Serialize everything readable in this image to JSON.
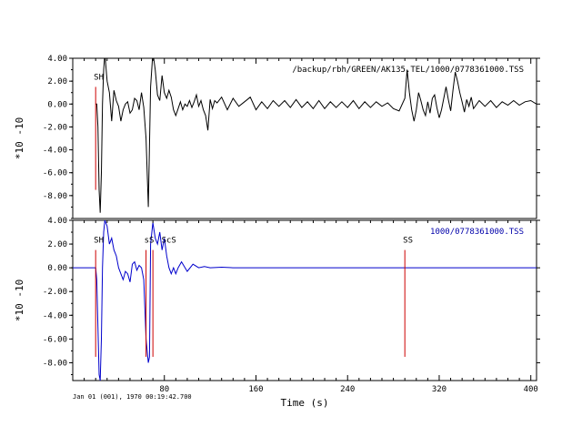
{
  "chart_data": [
    {
      "type": "line",
      "panel": "top",
      "file_label": "/backup/rbh/GREEN/AK135.TEL/1000/0778361000.TSS",
      "file_label_color": "#000000",
      "ylabel": "*10 -10",
      "ylim": [
        -10,
        4
      ],
      "yticks": [
        4,
        2,
        0,
        -2,
        -4,
        -6,
        -8
      ],
      "ytick_labels": [
        "4.00",
        "2.00",
        "0.00",
        "-2.00",
        "-4.00",
        "-6.00",
        "-8.00"
      ],
      "xlim": [
        0,
        405
      ],
      "series_color": "#000000",
      "x": [
        20,
        21,
        22,
        23,
        24,
        25,
        26,
        27,
        28,
        30,
        32,
        34,
        36,
        38,
        40,
        42,
        44,
        46,
        48,
        50,
        52,
        54,
        56,
        58,
        60,
        62,
        64,
        66,
        68,
        70,
        72,
        74,
        76,
        78,
        80,
        82,
        84,
        86,
        88,
        90,
        92,
        94,
        96,
        98,
        100,
        102,
        104,
        106,
        108,
        110,
        112,
        114,
        116,
        118,
        120,
        122,
        124,
        126,
        130,
        135,
        140,
        145,
        150,
        155,
        160,
        165,
        170,
        175,
        180,
        185,
        190,
        195,
        200,
        205,
        210,
        215,
        220,
        225,
        230,
        235,
        240,
        245,
        250,
        255,
        260,
        265,
        270,
        275,
        280,
        285,
        290,
        292,
        294,
        296,
        298,
        300,
        302,
        304,
        306,
        308,
        310,
        312,
        314,
        316,
        318,
        320,
        322,
        324,
        326,
        328,
        330,
        332,
        334,
        336,
        338,
        340,
        342,
        344,
        346,
        348,
        350,
        355,
        360,
        365,
        370,
        375,
        380,
        385,
        390,
        395,
        400,
        405
      ],
      "y": [
        0,
        0,
        -2,
        -7.5,
        -9.5,
        -6,
        0,
        3,
        4.4,
        2,
        1,
        -1.5,
        1.2,
        0.3,
        -0.2,
        -1.5,
        -0.5,
        0,
        0.2,
        -0.8,
        -0.5,
        0.5,
        0.3,
        -0.5,
        1,
        -0.3,
        -3,
        -9,
        1.5,
        4.5,
        3,
        0.8,
        0.3,
        2.5,
        1,
        0.5,
        1.2,
        0.6,
        -0.5,
        -1,
        -0.4,
        0.2,
        -0.5,
        0,
        -0.2,
        0.3,
        -0.3,
        0.2,
        0.8,
        -0.2,
        0.3,
        -0.5,
        -1,
        -2.3,
        0.4,
        -0.4,
        0.3,
        0.1,
        0.6,
        -0.5,
        0.5,
        -0.2,
        0.2,
        0.6,
        -0.5,
        0.2,
        -0.4,
        0.3,
        -0.2,
        0.3,
        -0.3,
        0.4,
        -0.3,
        0.2,
        -0.4,
        0.3,
        -0.4,
        0.2,
        -0.3,
        0.2,
        -0.3,
        0.3,
        -0.4,
        0.2,
        -0.3,
        0.2,
        -0.2,
        0.1,
        -0.4,
        -0.6,
        0.5,
        3,
        1,
        -0.5,
        -1.5,
        -0.5,
        1,
        0.3,
        -0.5,
        -1,
        0.2,
        -0.8,
        0.5,
        0.8,
        -0.3,
        -1.2,
        -0.5,
        0.5,
        1.5,
        0.4,
        -0.6,
        1.2,
        2.8,
        2,
        1,
        0.2,
        -0.7,
        0.4,
        -0.2,
        0.6,
        -0.4,
        0.3,
        -0.2,
        0.3,
        -0.3,
        0.2,
        -0.1,
        0.3,
        -0.1,
        0.2,
        0.3,
        0
      ],
      "phases": [
        {
          "label": "SH",
          "x": 20,
          "line_y_top": 1.5,
          "line_y_bottom": -7.5,
          "color": "#cc0000"
        }
      ]
    },
    {
      "type": "line",
      "panel": "bottom",
      "file_label": "1000/0778361000.TSS",
      "file_label_color": "#0000aa",
      "ylabel": "*10 -10",
      "ylim": [
        -9.5,
        4
      ],
      "yticks": [
        4,
        2,
        0,
        -2,
        -4,
        -6,
        -8
      ],
      "ytick_labels": [
        "4.00",
        "2.00",
        "0.00",
        "-2.00",
        "-4.00",
        "-6.00",
        "-8.00"
      ],
      "xlim": [
        0,
        405
      ],
      "xticks": [
        80,
        160,
        240,
        320,
        400
      ],
      "xtick_labels": [
        "80",
        "160",
        "240",
        "320",
        "400"
      ],
      "xlabel": "Time (s)",
      "series_color": "#0000cc",
      "x": [
        0,
        20,
        21,
        22,
        23,
        24,
        25,
        26,
        27,
        28,
        30,
        32,
        34,
        36,
        38,
        40,
        42,
        44,
        46,
        48,
        50,
        52,
        54,
        56,
        58,
        60,
        62,
        64,
        66,
        67,
        68,
        70,
        72,
        74,
        76,
        78,
        80,
        82,
        84,
        86,
        88,
        90,
        92,
        95,
        100,
        105,
        110,
        115,
        120,
        130,
        140,
        150,
        160,
        170,
        180,
        200,
        240,
        280,
        320,
        360,
        405
      ],
      "y": [
        0,
        0,
        -1,
        -5,
        -9,
        -9.5,
        -6,
        0,
        3,
        4,
        3.5,
        2,
        2.5,
        1.5,
        1,
        0,
        -0.5,
        -1,
        -0.3,
        -0.5,
        -1.2,
        0.3,
        0.5,
        -0.2,
        0.2,
        0,
        -1,
        -6,
        -8,
        -7.5,
        2,
        3.8,
        2.5,
        2,
        3,
        1.5,
        2.5,
        1,
        0,
        -0.5,
        0,
        -0.5,
        0,
        0.5,
        -0.3,
        0.3,
        0,
        0.1,
        0,
        0.05,
        0,
        0,
        0,
        0,
        0,
        0,
        0,
        0,
        0,
        0,
        0
      ],
      "phases": [
        {
          "label": "SH",
          "x": 20,
          "line_y_top": 1.5,
          "line_y_bottom": -7.5,
          "color": "#cc0000"
        },
        {
          "label": "sS",
          "x": 64,
          "line_y_top": 1.5,
          "line_y_bottom": -7.5,
          "color": "#cc0000"
        },
        {
          "label": "ScS",
          "x": 70,
          "line_y_top": 1.5,
          "line_y_bottom": -7.5,
          "color": "#cc0000"
        },
        {
          "label": "SS",
          "x": 290,
          "line_y_top": 1.5,
          "line_y_bottom": -7.5,
          "color": "#cc0000"
        }
      ]
    }
  ],
  "footer": {
    "datetime": "Jan 01 (001), 1970 00:19:42.700"
  }
}
